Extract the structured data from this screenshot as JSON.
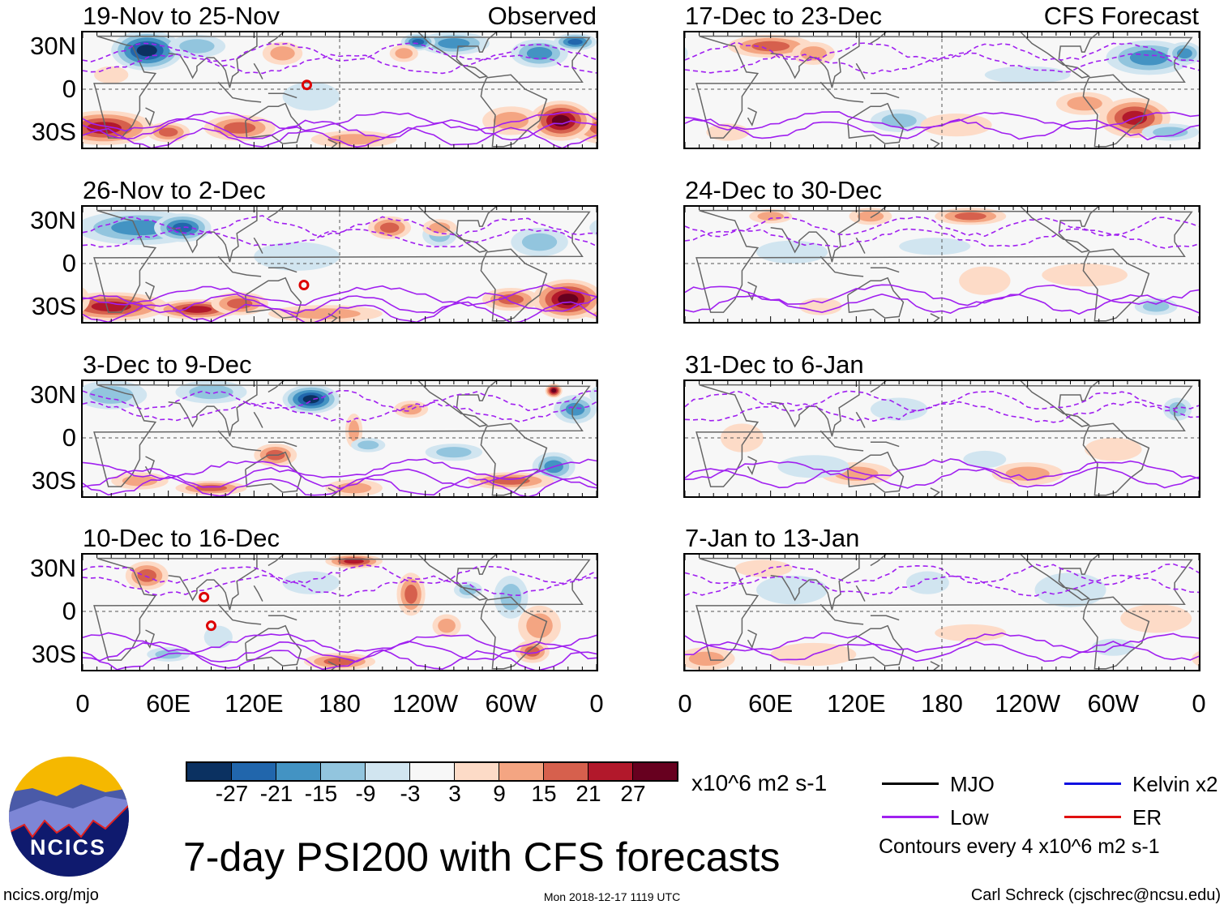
{
  "panels": [
    {
      "title": "19-Nov to 25-Nov",
      "tag": "Observed"
    },
    {
      "title": "26-Nov to 2-Dec"
    },
    {
      "title": "3-Dec to 9-Dec"
    },
    {
      "title": "10-Dec to 16-Dec"
    },
    {
      "title": "17-Dec to 23-Dec",
      "tag": "CFS Forecast"
    },
    {
      "title": "24-Dec to 30-Dec"
    },
    {
      "title": "31-Dec to 6-Jan"
    },
    {
      "title": "7-Jan to 13-Jan"
    }
  ],
  "lat_ticks": [
    "30N",
    "0",
    "30S"
  ],
  "lon_ticks": [
    "0",
    "60E",
    "120E",
    "180",
    "120W",
    "60W",
    "0"
  ],
  "colorbar": {
    "labels": [
      "-27",
      "-21",
      "-15",
      "-9",
      "-3",
      "3",
      "9",
      "15",
      "21",
      "27"
    ],
    "colors": [
      "#0b3161",
      "#2166ac",
      "#4393c3",
      "#92c5de",
      "#d1e5f0",
      "#f7f7f7",
      "#fddbc7",
      "#f4a582",
      "#d6604d",
      "#b2182b",
      "#67001f"
    ],
    "units": "x10^6 m2 s-1"
  },
  "legend": {
    "items": [
      {
        "label": "MJO",
        "color": "#000000"
      },
      {
        "label": "Kelvin x2",
        "color": "#1010e0"
      },
      {
        "label": "Low",
        "color": "#a020f0"
      },
      {
        "label": "ER",
        "color": "#e01010"
      }
    ],
    "note": "Contours every 4 x10^6 m2 s-1"
  },
  "title": "7-day PSI200 with CFS forecasts",
  "logo_text": "NCICS",
  "footer": {
    "left": "ncics.org/mjo",
    "center": "Mon 2018-12-17 1119 UTC",
    "right": "Carl Schreck (cjschrec@ncsu.edu)"
  }
}
